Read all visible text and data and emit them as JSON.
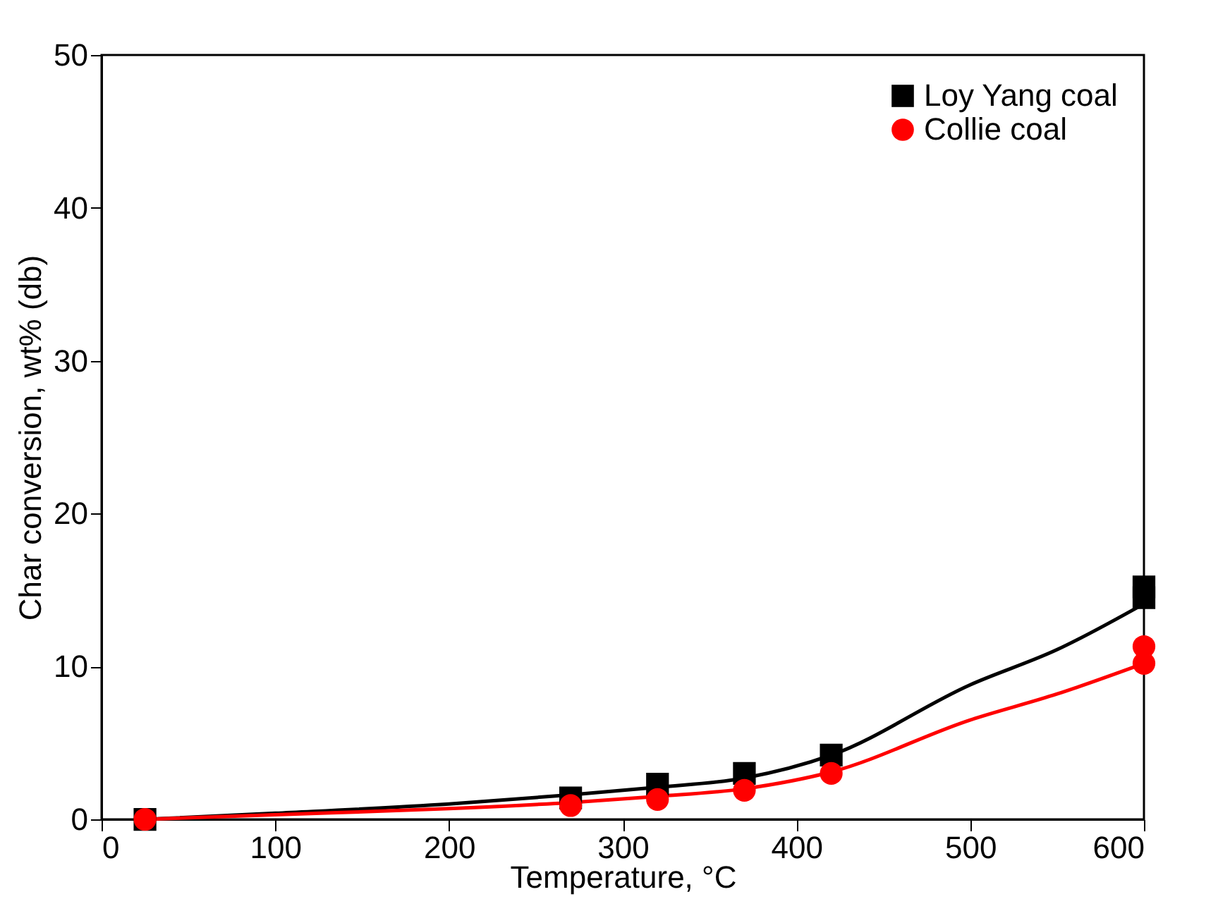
{
  "chart_data": {
    "type": "scatter",
    "xlabel": "Temperature, °C",
    "ylabel": "Char conversion, wt% (db)",
    "xlim": [
      0,
      600
    ],
    "ylim": [
      0,
      50
    ],
    "xticks": [
      0,
      100,
      200,
      300,
      400,
      500,
      600
    ],
    "yticks": [
      0,
      10,
      20,
      30,
      40,
      50
    ],
    "grid": false,
    "legend": "top right",
    "series": [
      {
        "type": "line",
        "color": "#000000",
        "marker": "none",
        "line_style": "solid",
        "x": [
          25,
          100,
          200,
          270,
          320,
          370,
          420,
          500,
          550,
          600
        ],
        "values": [
          0,
          0.4,
          1.0,
          1.6,
          2.1,
          2.7,
          4.2,
          8.8,
          11.1,
          14.1
        ]
      },
      {
        "type": "line",
        "color": "#ff0000",
        "marker": "none",
        "line_style": "solid",
        "x": [
          25,
          100,
          200,
          270,
          320,
          370,
          420,
          500,
          550,
          600
        ],
        "values": [
          0,
          0.3,
          0.7,
          1.1,
          1.5,
          2.0,
          3.1,
          6.5,
          8.2,
          10.2
        ]
      },
      {
        "name": "Loy Yang coal",
        "color": "#000000",
        "marker": "square",
        "x": [
          25,
          270,
          320,
          370,
          420,
          600,
          600
        ],
        "values": [
          0,
          1.4,
          2.3,
          3.0,
          4.2,
          15.2,
          14.5
        ]
      },
      {
        "name": "Collie coal",
        "color": "#ff0000",
        "marker": "circle",
        "x": [
          25,
          270,
          320,
          370,
          420,
          600,
          600
        ],
        "values": [
          0,
          0.9,
          1.3,
          1.9,
          3.0,
          11.3,
          10.2
        ]
      }
    ]
  }
}
